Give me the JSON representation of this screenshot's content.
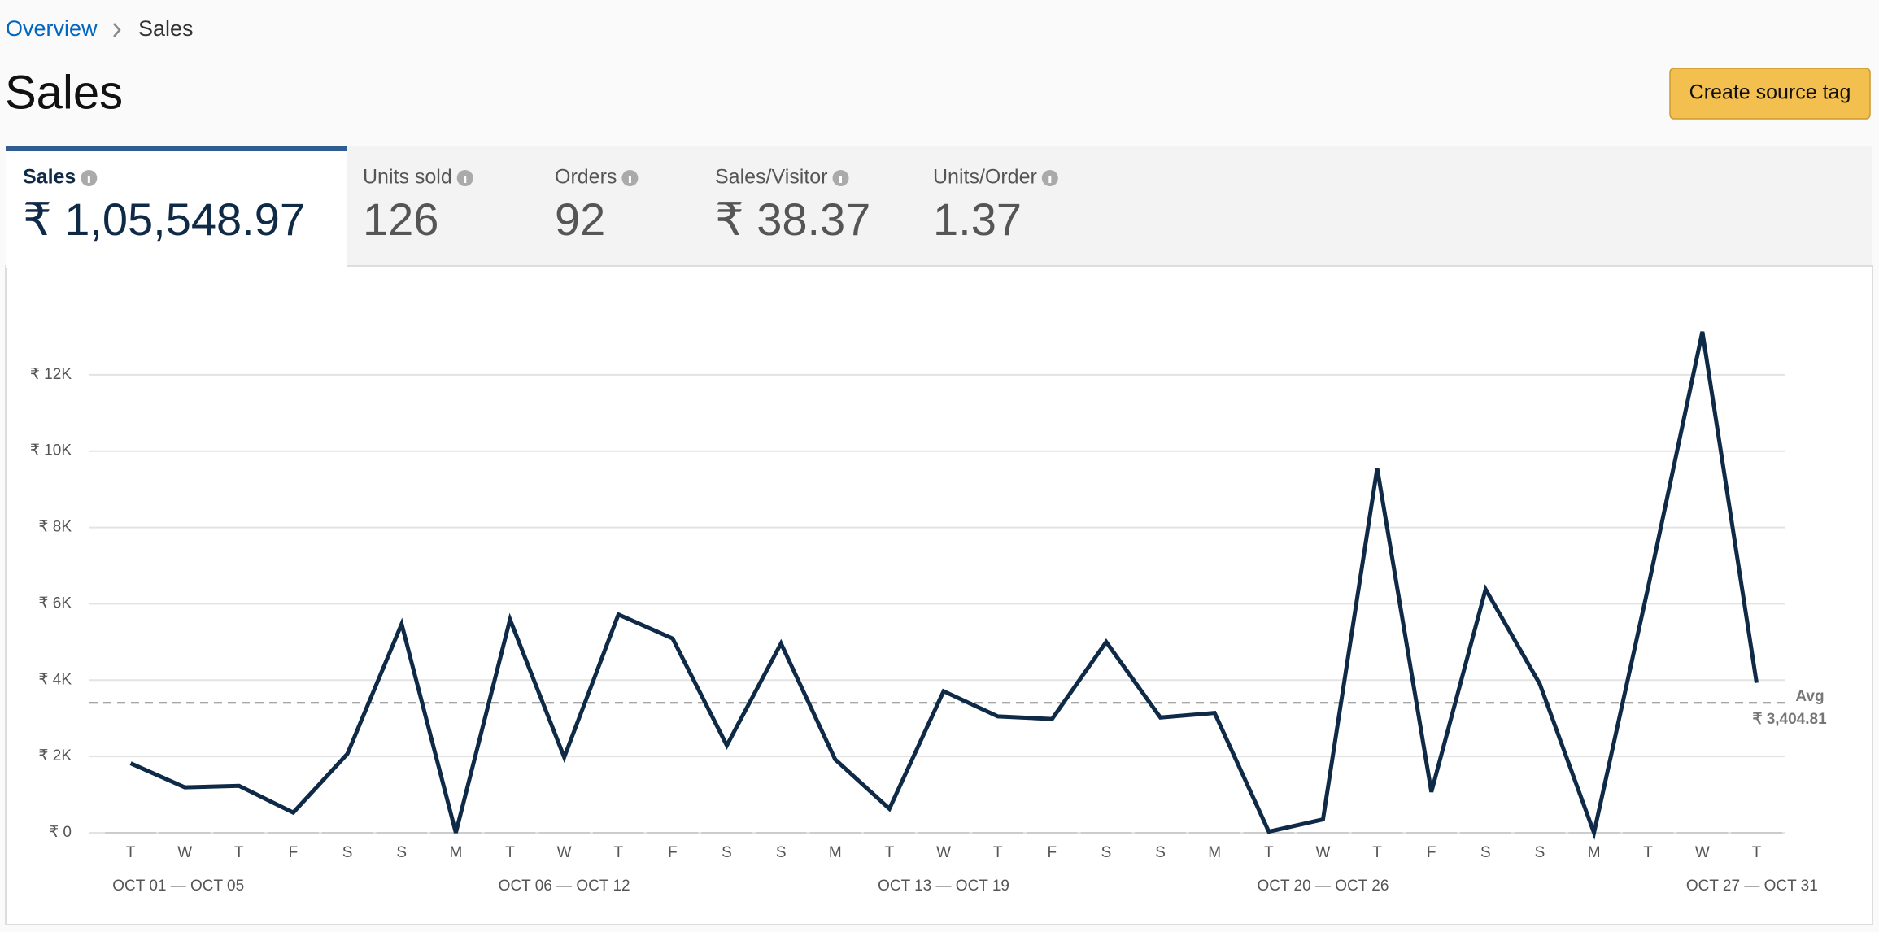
{
  "breadcrumb": {
    "link": "Overview",
    "current": "Sales"
  },
  "header": {
    "title": "Sales",
    "button": "Create source tag"
  },
  "tabs": [
    {
      "label": "Sales",
      "value": "₹ 1,05,548.97",
      "active": true
    },
    {
      "label": "Units sold",
      "value": "126"
    },
    {
      "label": "Orders",
      "value": "92"
    },
    {
      "label": "Sales/Visitor",
      "value": "₹ 38.37"
    },
    {
      "label": "Units/Order",
      "value": "1.37"
    }
  ],
  "chart_data": {
    "type": "line",
    "color": "#0f2a47",
    "categories": [
      "T",
      "W",
      "T",
      "F",
      "S",
      "S",
      "M",
      "T",
      "W",
      "T",
      "F",
      "S",
      "S",
      "M",
      "T",
      "W",
      "T",
      "F",
      "S",
      "S",
      "M",
      "T",
      "W",
      "T",
      "F",
      "S",
      "S",
      "M",
      "T",
      "W",
      "T"
    ],
    "values": [
      1820,
      1190,
      1230,
      530,
      2070,
      5470,
      0,
      5590,
      1980,
      5720,
      5090,
      2290,
      4960,
      1920,
      630,
      3710,
      3050,
      2980,
      5000,
      3020,
      3140,
      30,
      350,
      9550,
      1070,
      6380,
      3900,
      0,
      6440,
      13130,
      3930
    ],
    "weeks": [
      "OCT 01 — OCT 05",
      "OCT 06 — OCT 12",
      "OCT 13 — OCT 19",
      "OCT 20 — OCT 26",
      "OCT 27 — OCT 31"
    ],
    "ylim": [
      0,
      14000
    ],
    "yticks": [
      {
        "value": 0,
        "label": "₹ 0"
      },
      {
        "value": 2000,
        "label": "₹ 2K"
      },
      {
        "value": 4000,
        "label": "₹ 4K"
      },
      {
        "value": 6000,
        "label": "₹ 6K"
      },
      {
        "value": 8000,
        "label": "₹ 8K"
      },
      {
        "value": 10000,
        "label": "₹ 10K"
      },
      {
        "value": 12000,
        "label": "₹ 12K"
      }
    ],
    "grid": true,
    "avg": {
      "label": "Avg",
      "value": 3404.81,
      "value_label": "₹ 3,404.81"
    }
  }
}
